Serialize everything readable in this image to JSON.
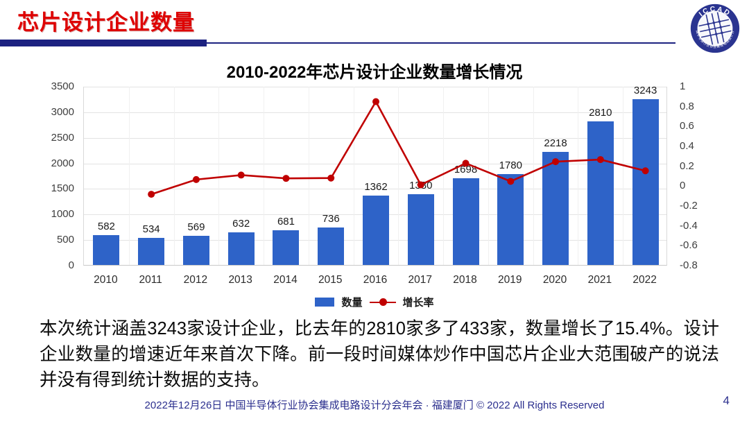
{
  "header": {
    "title": "芯片设计企业数量",
    "logo": {
      "text": "ICCAD",
      "ring_text": "中国半导体行业协会集成电路设计分会"
    }
  },
  "chart_data": {
    "type": "combo",
    "title": "2010-2022年芯片设计企业数量增长情况",
    "categories": [
      "2010",
      "2011",
      "2012",
      "2013",
      "2014",
      "2015",
      "2016",
      "2017",
      "2018",
      "2019",
      "2020",
      "2021",
      "2022"
    ],
    "series": [
      {
        "name": "数量",
        "type": "bar",
        "axis": "left",
        "color": "#2E63C8",
        "values": [
          582,
          534,
          569,
          632,
          681,
          736,
          1362,
          1380,
          1698,
          1780,
          2218,
          2810,
          3243
        ]
      },
      {
        "name": "增长率",
        "type": "line",
        "axis": "right",
        "color": "#C00000",
        "values": [
          null,
          -0.082,
          0.066,
          0.111,
          0.078,
          0.081,
          0.85,
          0.013,
          0.23,
          0.048,
          0.246,
          0.267,
          0.154
        ]
      }
    ],
    "left_axis": {
      "min": 0,
      "max": 3500,
      "step": 500,
      "ticks": [
        3500,
        3000,
        2500,
        2000,
        1500,
        1000,
        500,
        0
      ]
    },
    "right_axis": {
      "min": -0.8,
      "max": 1,
      "step": 0.2,
      "ticks": [
        "1",
        "0.8",
        "0.6",
        "0.4",
        "0.2",
        "0",
        "-0.2",
        "-0.4",
        "-0.6",
        "-0.8"
      ]
    },
    "grid": true,
    "legend_position": "bottom"
  },
  "body": {
    "paragraph": "本次统计涵盖3243家设计企业，比去年的2810家多了433家，数量增长了15.4%。设计企业数量的增速近年来首次下降。前一段时间媒体炒作中国芯片企业大范围破产的说法并没有得到统计数据的支持。"
  },
  "footer": {
    "text": "2022年12月26日 中国半导体行业协会集成电路设计分会年会 · 福建厦门 © 2022 All Rights Reserved",
    "page": "4"
  },
  "colors": {
    "accent_red": "#DE0202",
    "navy": "#1C2280",
    "bar_blue": "#2E63C8",
    "line_red": "#C00000"
  }
}
